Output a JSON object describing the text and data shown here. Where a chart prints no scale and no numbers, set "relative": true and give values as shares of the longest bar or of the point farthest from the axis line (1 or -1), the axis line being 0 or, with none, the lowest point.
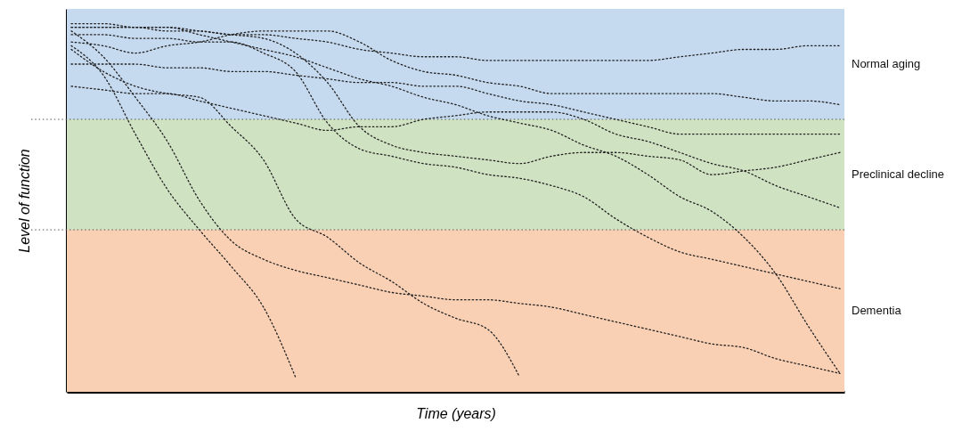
{
  "chart_data": {
    "type": "line",
    "relative": true,
    "xlabel": "Time (years)",
    "ylabel": "Level of function",
    "line_style": "dashed",
    "categories": [
      null,
      null,
      null,
      null,
      null,
      null,
      null,
      null,
      null,
      null,
      null,
      null,
      null,
      null,
      null,
      null,
      null,
      null,
      null,
      null,
      null,
      null,
      null,
      null,
      null
    ],
    "series": [
      {
        "color": "#222222",
        "values": [
          0.99,
          0.99,
          0.99,
          0.98,
          0.98,
          0.97,
          0.97,
          0.96,
          0.95,
          0.93,
          0.92,
          0.91,
          0.91,
          0.9,
          0.9,
          0.9,
          0.9,
          0.9,
          0.9,
          0.91,
          0.92,
          0.93,
          0.93,
          0.94,
          0.94
        ]
      },
      {
        "color": "#222222",
        "values": [
          0.95,
          0.94,
          0.92,
          0.94,
          0.95,
          0.97,
          0.98,
          0.98,
          0.98,
          0.95,
          0.9,
          0.87,
          0.86,
          0.84,
          0.83,
          0.81,
          0.81,
          0.81,
          0.81,
          0.81,
          0.81,
          0.8,
          0.79,
          0.79,
          0.78
        ]
      },
      {
        "color": "#222222",
        "values": [
          0.99,
          0.99,
          0.99,
          0.99,
          0.98,
          0.97,
          0.96,
          0.92,
          0.84,
          0.72,
          0.67,
          0.65,
          0.64,
          0.63,
          0.62,
          0.64,
          0.65,
          0.65,
          0.64,
          0.63,
          0.59,
          0.6,
          0.61,
          0.63,
          0.65
        ]
      },
      {
        "color": "#222222",
        "values": [
          0.97,
          0.97,
          0.96,
          0.96,
          0.95,
          0.95,
          0.92,
          0.87,
          0.73,
          0.66,
          0.64,
          0.62,
          0.61,
          0.59,
          0.58,
          0.56,
          0.53,
          0.47,
          0.42,
          0.38,
          0.36,
          0.34,
          0.32,
          0.3,
          0.28
        ]
      },
      {
        "color": "#222222",
        "values": [
          0.89,
          0.89,
          0.89,
          0.88,
          0.88,
          0.87,
          0.87,
          0.86,
          0.85,
          0.84,
          0.84,
          0.83,
          0.83,
          0.81,
          0.79,
          0.78,
          0.76,
          0.74,
          0.72,
          0.7,
          0.7,
          0.7,
          0.7,
          0.7,
          0.7
        ]
      },
      {
        "color": "#222222",
        "values": [
          0.83,
          0.82,
          0.81,
          0.81,
          0.79,
          0.77,
          0.75,
          0.73,
          0.71,
          0.72,
          0.72,
          0.74,
          0.75,
          0.76,
          0.76,
          0.76,
          0.74,
          0.7,
          0.68,
          0.65,
          0.62,
          0.6,
          0.56,
          0.53,
          0.5
        ]
      },
      {
        "color": "#222222",
        "values": [
          0.98,
          0.91,
          0.8,
          0.68,
          0.52,
          0.41,
          0.36,
          0.33,
          0.31,
          0.29,
          0.27,
          0.26,
          0.25,
          0.25,
          0.24,
          0.23,
          0.21,
          0.19,
          0.17,
          0.15,
          0.13,
          0.12,
          0.09,
          0.07,
          0.05
        ]
      },
      {
        "color": "#222222",
        "values": [
          0.93,
          0.87,
          0.83,
          0.81,
          0.8,
          0.72,
          0.63,
          0.47,
          0.42,
          0.35,
          0.3,
          0.24,
          0.2,
          0.17,
          0.04,
          null,
          null,
          null,
          null,
          null,
          null,
          null,
          null,
          null,
          null
        ]
      },
      {
        "color": "#222222",
        "values": [
          0.94,
          0.86,
          0.7,
          0.55,
          0.44,
          0.34,
          0.23,
          0.04,
          null,
          null,
          null,
          null,
          null,
          null,
          null,
          null,
          null,
          null,
          null,
          null,
          null,
          null,
          null,
          null,
          null
        ]
      },
      {
        "color": "#222222",
        "values": [
          1.0,
          1.0,
          0.99,
          0.99,
          0.97,
          0.95,
          0.93,
          0.91,
          0.88,
          0.85,
          0.83,
          0.8,
          0.78,
          0.75,
          0.73,
          0.71,
          0.67,
          0.64,
          0.59,
          0.53,
          0.49,
          0.42,
          0.32,
          0.18,
          0.05
        ]
      }
    ],
    "ref_lines": [
      {
        "axis": "y",
        "value": 0.74,
        "color": "#555555",
        "line_style": "dashed"
      },
      {
        "axis": "y",
        "value": 0.44,
        "color": "#555555",
        "line_style": "dashed"
      }
    ],
    "bands": [
      {
        "axis": "y",
        "from": 0.74,
        "to": 1.04,
        "label": "Normal aging",
        "color": "#c5d9ef"
      },
      {
        "axis": "y",
        "from": 0.44,
        "to": 0.74,
        "label": "Preclinical decline",
        "color": "#cfe2c1"
      },
      {
        "axis": "y",
        "from": 0,
        "to": 0.44,
        "label": "Dementia",
        "color": "#f9d0b4"
      }
    ]
  }
}
